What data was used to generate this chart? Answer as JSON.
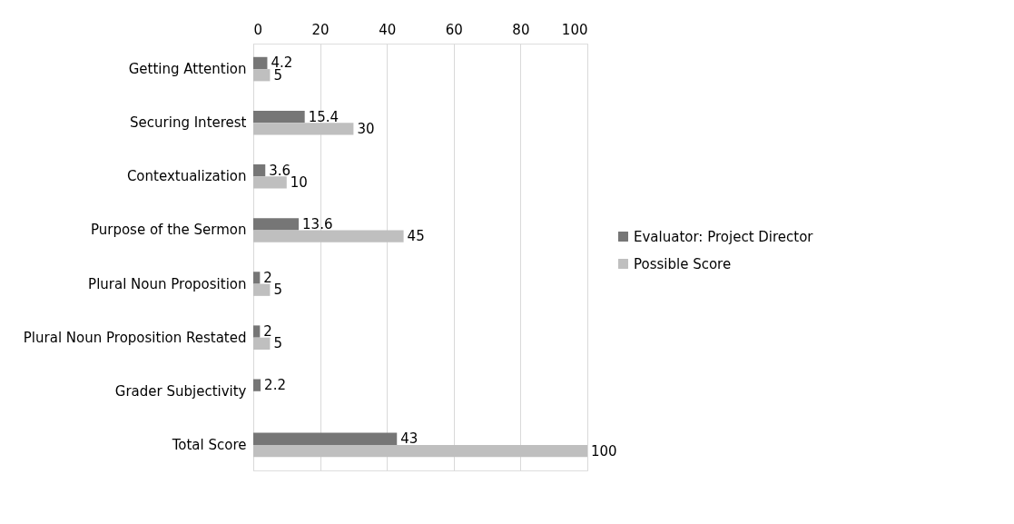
{
  "chart_data": {
    "type": "bar",
    "orientation": "horizontal",
    "categories": [
      "Getting Attention",
      "Securing Interest",
      "Contextualization",
      "Purpose of the Sermon",
      "Plural Noun Proposition",
      "Plural Noun Proposition Restated",
      "Grader Subjectivity",
      "Total Score"
    ],
    "series": [
      {
        "name": "Evaluator: Project Director",
        "color": "#767676",
        "values": [
          4.2,
          15.4,
          3.6,
          13.6,
          2,
          2,
          2.2,
          43
        ]
      },
      {
        "name": "Possible Score",
        "color": "#bfbfbf",
        "values": [
          5,
          30,
          10,
          45,
          5,
          5,
          null,
          100
        ]
      }
    ],
    "xlim": [
      0,
      100
    ],
    "xticks": [
      0,
      20,
      40,
      60,
      80,
      100
    ],
    "grid": "x",
    "legend": "right",
    "data_labels": true
  }
}
